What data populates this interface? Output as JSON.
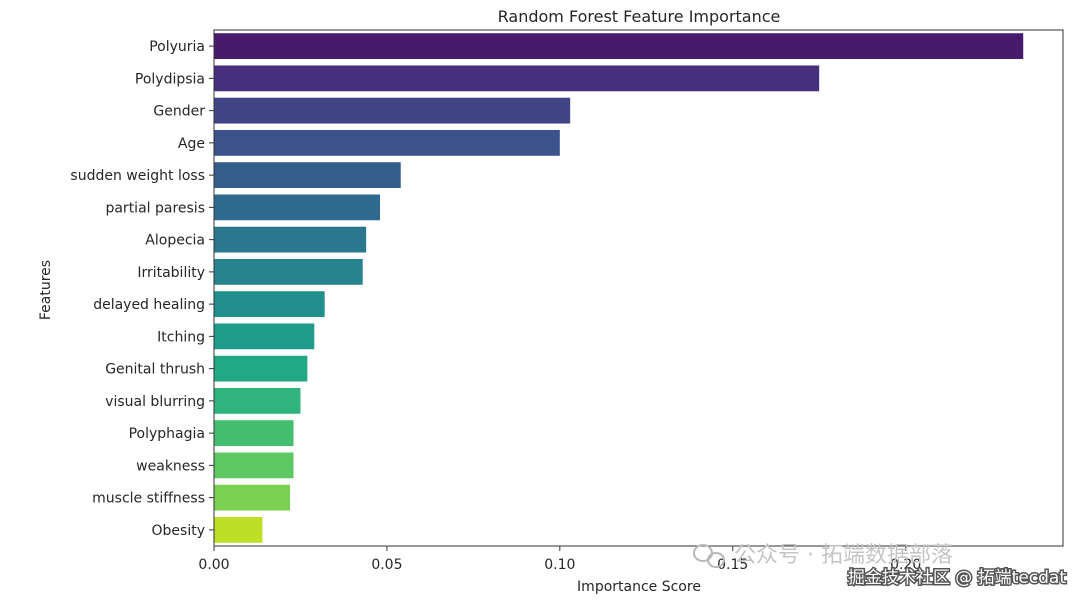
{
  "chart_data": {
    "type": "bar",
    "orientation": "horizontal",
    "title": "Random Forest Feature Importance",
    "xlabel": "Importance Score",
    "ylabel": "Features",
    "xlim": [
      0,
      0.2455
    ],
    "xticks": [
      0.0,
      0.05,
      0.1,
      0.15,
      0.2
    ],
    "xtick_labels": [
      "0.00",
      "0.05",
      "0.10",
      "0.15",
      "0.20"
    ],
    "categories": [
      "Polyuria",
      "Polydipsia",
      "Gender",
      "Age",
      "sudden weight loss",
      "partial paresis",
      "Alopecia",
      "Irritability",
      "delayed healing",
      "Itching",
      "Genital thrush",
      "visual blurring",
      "Polyphagia",
      "weakness",
      "muscle stiffness",
      "Obesity"
    ],
    "values": [
      0.234,
      0.175,
      0.103,
      0.1,
      0.054,
      0.048,
      0.044,
      0.043,
      0.032,
      0.029,
      0.027,
      0.025,
      0.023,
      0.023,
      0.022,
      0.014
    ],
    "colors": [
      "#481a6c",
      "#472f7d",
      "#414487",
      "#3b528b",
      "#345f8d",
      "#2f6b8e",
      "#2a788e",
      "#25848e",
      "#21908d",
      "#1e9c89",
      "#22a884",
      "#2fb47c",
      "#44bf70",
      "#5ec962",
      "#7ad151",
      "#bddf26"
    ],
    "grid": false,
    "legend": "none"
  },
  "watermark": {
    "line1": "公众号 · 拓端数据部落",
    "line2": "掘金技术社区 @ 拓端tecdat"
  }
}
